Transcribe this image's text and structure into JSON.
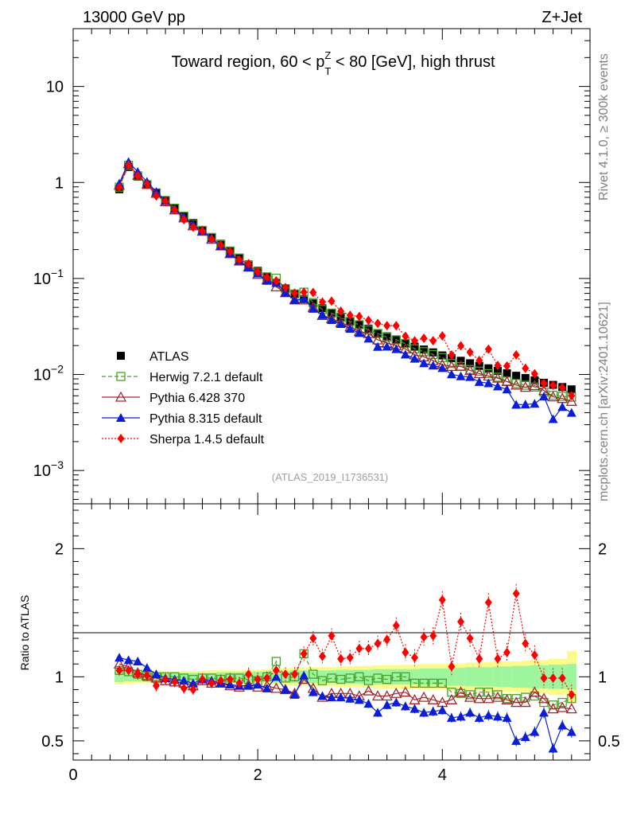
{
  "header": {
    "energy_label": "13000 GeV pp",
    "process_label": "Z+Jet",
    "rivet_label": "Rivet 4.1.0, ≥ 300k events",
    "source_label": "mcplots.cern.ch [arXiv:2401.10621]",
    "analysis_id": "(ATLAS_2019_I1736531)"
  },
  "colors": {
    "data": "#000000",
    "herwig": "#4aa02c",
    "pythia6": "#a0282d",
    "pythia8": "#0a1ed7",
    "sherpa": "#ff0000",
    "band_inner": "#9ef59e",
    "band_outer": "#fbfb8c"
  },
  "chart_data": [
    {
      "type": "scatter",
      "panel": "main",
      "title": {
        "prefix": "Toward region, 60 < p",
        "sup": "Z",
        "sub": "T",
        "suffix": " < 80 [GeV], high thrust"
      },
      "xlabel": "",
      "ylabel": "",
      "xlim": [
        0,
        5.6
      ],
      "ylim": [
        0.00045,
        40
      ],
      "yscale": "log",
      "y_ticks": [
        {
          "value": 10,
          "base": "10",
          "exp": ""
        },
        {
          "value": 1,
          "base": "1",
          "exp": ""
        },
        {
          "value": 0.1,
          "base": "10",
          "exp": "−1"
        },
        {
          "value": 0.01,
          "base": "10",
          "exp": "−2"
        },
        {
          "value": 0.001,
          "base": "10",
          "exp": "−3"
        }
      ],
      "legend": {
        "placement": "center-left",
        "entries": [
          {
            "key": "data",
            "label": "ATLAS"
          },
          {
            "key": "herwig",
            "label": "Herwig 7.2.1 default"
          },
          {
            "key": "pythia6",
            "label": "Pythia 6.428 370"
          },
          {
            "key": "pythia8",
            "label": "Pythia 8.315 default"
          },
          {
            "key": "sherpa",
            "label": "Sherpa 1.4.5 default"
          }
        ]
      },
      "x": [
        0.5,
        0.6,
        0.7,
        0.8,
        0.9,
        1.0,
        1.1,
        1.2,
        1.3,
        1.4,
        1.5,
        1.6,
        1.7,
        1.8,
        1.9,
        2.0,
        2.1,
        2.2,
        2.3,
        2.4,
        2.5,
        2.6,
        2.7,
        2.8,
        2.9,
        3.0,
        3.1,
        3.2,
        3.3,
        3.4,
        3.5,
        3.6,
        3.7,
        3.8,
        3.9,
        4.0,
        4.1,
        4.2,
        4.3,
        4.4,
        4.5,
        4.6,
        4.7,
        4.8,
        4.9,
        5.0,
        5.1,
        5.2,
        5.3,
        5.4
      ],
      "series": [
        {
          "key": "data",
          "name": "ATLAS",
          "marker": "square",
          "values": [
            0.85,
            1.45,
            1.15,
            0.95,
            0.78,
            0.65,
            0.54,
            0.45,
            0.38,
            0.32,
            0.27,
            0.23,
            0.195,
            0.165,
            0.14,
            0.12,
            0.104,
            0.09,
            0.079,
            0.069,
            0.061,
            0.055,
            0.049,
            0.044,
            0.04,
            0.036,
            0.033,
            0.03,
            0.027,
            0.025,
            0.023,
            0.021,
            0.0195,
            0.0182,
            0.017,
            0.0158,
            0.0148,
            0.0139,
            0.0131,
            0.0123,
            0.0116,
            0.0109,
            0.0103,
            0.0097,
            0.0092,
            0.0087,
            0.0082,
            0.0078,
            0.0074,
            0.007
          ]
        },
        {
          "key": "herwig",
          "name": "Herwig 7.2.1 default",
          "marker": "open-square",
          "ratio": [
            1.05,
            1.04,
            1.02,
            1.0,
            1.0,
            1.0,
            1.0,
            0.99,
            0.98,
            0.99,
            0.99,
            0.98,
            0.99,
            0.99,
            0.98,
            0.97,
            1.0,
            1.12,
            0.99,
            1.0,
            1.18,
            1.02,
            0.97,
            0.99,
            0.98,
            0.99,
            1.0,
            0.97,
            0.99,
            0.98,
            1.0,
            1.0,
            0.95,
            0.95,
            0.95,
            0.95,
            0.88,
            0.87,
            0.86,
            0.88,
            0.88,
            0.86,
            0.83,
            0.83,
            0.84,
            0.85,
            0.8,
            0.78,
            0.8,
            0.83
          ]
        },
        {
          "key": "pythia6",
          "name": "Pythia 6.428 370",
          "marker": "open-triangle",
          "ratio": [
            1.1,
            1.08,
            1.03,
            1.01,
            0.99,
            0.97,
            0.96,
            0.95,
            0.93,
            0.97,
            0.95,
            0.95,
            0.93,
            0.92,
            0.94,
            0.92,
            0.93,
            0.91,
            0.9,
            0.87,
            0.98,
            0.91,
            0.84,
            0.87,
            0.87,
            0.87,
            0.85,
            0.89,
            0.85,
            0.85,
            0.87,
            0.88,
            0.82,
            0.84,
            0.82,
            0.8,
            0.82,
            0.88,
            0.84,
            0.83,
            0.83,
            0.84,
            0.82,
            0.8,
            0.8,
            0.88,
            0.83,
            0.75,
            0.76,
            0.75
          ]
        },
        {
          "key": "pythia8",
          "name": "Pythia 8.315 default",
          "marker": "triangle",
          "ratio": [
            1.15,
            1.13,
            1.12,
            1.07,
            1.02,
            0.99,
            0.98,
            0.97,
            0.95,
            0.98,
            0.97,
            0.95,
            0.94,
            0.93,
            0.93,
            0.94,
            0.91,
            1.0,
            0.9,
            0.86,
            1.01,
            0.88,
            0.85,
            0.84,
            0.84,
            0.83,
            0.82,
            0.79,
            0.72,
            0.78,
            0.8,
            0.77,
            0.75,
            0.72,
            0.73,
            0.74,
            0.68,
            0.69,
            0.72,
            0.68,
            0.7,
            0.69,
            0.68,
            0.5,
            0.53,
            0.57,
            0.72,
            0.44,
            0.62,
            0.57
          ]
        },
        {
          "key": "sherpa",
          "name": "Sherpa 1.4.5 default",
          "marker": "diamond",
          "ratio": [
            1.05,
            1.05,
            1.02,
            1.01,
            0.93,
            0.98,
            0.96,
            0.91,
            0.9,
            0.98,
            0.95,
            0.97,
            0.98,
            0.95,
            1.02,
            0.98,
            0.99,
            1.05,
            1.02,
            1.02,
            1.18,
            1.3,
            1.16,
            1.32,
            1.14,
            1.15,
            1.22,
            1.22,
            1.26,
            1.29,
            1.4,
            1.19,
            1.15,
            1.31,
            1.32,
            1.6,
            1.08,
            1.43,
            1.3,
            1.14,
            1.58,
            1.14,
            1.19,
            1.65,
            1.26,
            1.17,
            0.99,
            0.99,
            0.99,
            0.86
          ]
        }
      ]
    },
    {
      "type": "scatter",
      "panel": "ratio",
      "xlabel": "",
      "ylabel": "Ratio to ATLAS",
      "xlim": [
        0,
        5.6
      ],
      "ylim": [
        0.35,
        2.35
      ],
      "x_ticks": [
        0,
        2,
        4
      ],
      "y_ticks": [
        0.5,
        1,
        2
      ],
      "reference_line": 1,
      "band_x": [
        0.45,
        0.55,
        0.65,
        0.75,
        0.85,
        0.95,
        1.05,
        1.15,
        1.25,
        1.35,
        1.45,
        1.55,
        1.65,
        1.75,
        1.85,
        1.95,
        2.05,
        2.15,
        2.25,
        2.35,
        2.45,
        2.55,
        2.65,
        2.75,
        2.85,
        2.95,
        3.05,
        3.15,
        3.25,
        3.35,
        3.45,
        3.55,
        3.65,
        3.75,
        3.85,
        3.95,
        4.05,
        4.15,
        4.25,
        4.35,
        4.45,
        4.55,
        4.65,
        4.75,
        4.85,
        4.95,
        5.05,
        5.15,
        5.25,
        5.35,
        5.45
      ],
      "band_inner_halfwidth": [
        0.04,
        0.035,
        0.035,
        0.035,
        0.035,
        0.03,
        0.03,
        0.03,
        0.03,
        0.03,
        0.03,
        0.035,
        0.035,
        0.035,
        0.04,
        0.04,
        0.04,
        0.045,
        0.045,
        0.05,
        0.05,
        0.05,
        0.05,
        0.05,
        0.055,
        0.055,
        0.055,
        0.055,
        0.06,
        0.06,
        0.06,
        0.06,
        0.06,
        0.065,
        0.065,
        0.065,
        0.07,
        0.07,
        0.075,
        0.075,
        0.075,
        0.08,
        0.08,
        0.085,
        0.085,
        0.09,
        0.09,
        0.095,
        0.095,
        0.1
      ],
      "band_outer_halfwidth": [
        0.06,
        0.055,
        0.05,
        0.05,
        0.05,
        0.045,
        0.045,
        0.045,
        0.045,
        0.045,
        0.05,
        0.05,
        0.05,
        0.05,
        0.055,
        0.055,
        0.06,
        0.06,
        0.065,
        0.07,
        0.07,
        0.075,
        0.075,
        0.075,
        0.08,
        0.08,
        0.085,
        0.085,
        0.09,
        0.09,
        0.09,
        0.095,
        0.095,
        0.1,
        0.1,
        0.1,
        0.105,
        0.105,
        0.11,
        0.11,
        0.115,
        0.115,
        0.12,
        0.12,
        0.125,
        0.13,
        0.13,
        0.14,
        0.14,
        0.2
      ]
    }
  ]
}
